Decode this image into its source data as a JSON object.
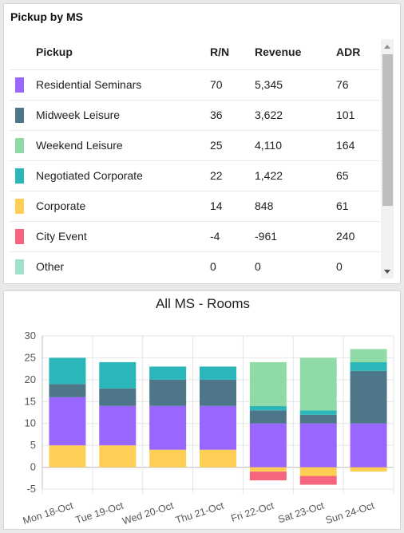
{
  "pickup_card": {
    "title": "Pickup by MS",
    "columns": {
      "name": "Pickup",
      "rn": "R/N",
      "revenue": "Revenue",
      "adr": "ADR"
    },
    "rows": [
      {
        "name": "Residential Seminars",
        "rn": "70",
        "revenue": "5,345",
        "adr": "76",
        "color": "#9966ff"
      },
      {
        "name": "Midweek Leisure",
        "rn": "36",
        "revenue": "3,622",
        "adr": "101",
        "color": "#4d7689"
      },
      {
        "name": "Weekend Leisure",
        "rn": "25",
        "revenue": "4,110",
        "adr": "164",
        "color": "#8fdaa6"
      },
      {
        "name": "Negotiated Corporate",
        "rn": "22",
        "revenue": "1,422",
        "adr": "65",
        "color": "#2bb7ba"
      },
      {
        "name": "Corporate",
        "rn": "14",
        "revenue": "848",
        "adr": "61",
        "color": "#ffce55"
      },
      {
        "name": "City Event",
        "rn": "-4",
        "revenue": "-961",
        "adr": "240",
        "color": "#f7647e"
      },
      {
        "name": "Other",
        "rn": "0",
        "revenue": "0",
        "adr": "0",
        "color": "#9fe3cc"
      }
    ]
  },
  "chart_card": {
    "title": "All MS - Rooms"
  },
  "chart_data": {
    "type": "bar",
    "stacked": true,
    "title": "All MS - Rooms",
    "categories": [
      "Mon 18-Oct",
      "Tue 19-Oct",
      "Wed 20-Oct",
      "Thu 21-Oct",
      "Fri 22-Oct",
      "Sat 23-Oct",
      "Sun 24-Oct"
    ],
    "ylim": [
      -5,
      30
    ],
    "yticks": [
      -5,
      0,
      5,
      10,
      15,
      20,
      25,
      30
    ],
    "grid": true,
    "series": [
      {
        "key": "corporate",
        "color": "#ffce55",
        "values": [
          5,
          5,
          4,
          4,
          -1,
          -2,
          -1
        ]
      },
      {
        "key": "city_event",
        "color": "#f7647e",
        "values": [
          0,
          0,
          0,
          0,
          -2,
          -2,
          0
        ]
      },
      {
        "key": "residential_seminars",
        "color": "#9966ff",
        "values": [
          11,
          9,
          10,
          10,
          10,
          10,
          10
        ]
      },
      {
        "key": "midweek_leisure",
        "color": "#4d7689",
        "values": [
          3,
          4,
          6,
          6,
          3,
          2,
          12
        ]
      },
      {
        "key": "negotiated_corporate",
        "color": "#2bb7ba",
        "values": [
          6,
          6,
          3,
          3,
          1,
          1,
          2
        ]
      },
      {
        "key": "weekend_leisure",
        "color": "#8fdaa6",
        "values": [
          0,
          0,
          0,
          0,
          10,
          12,
          3
        ]
      }
    ]
  }
}
